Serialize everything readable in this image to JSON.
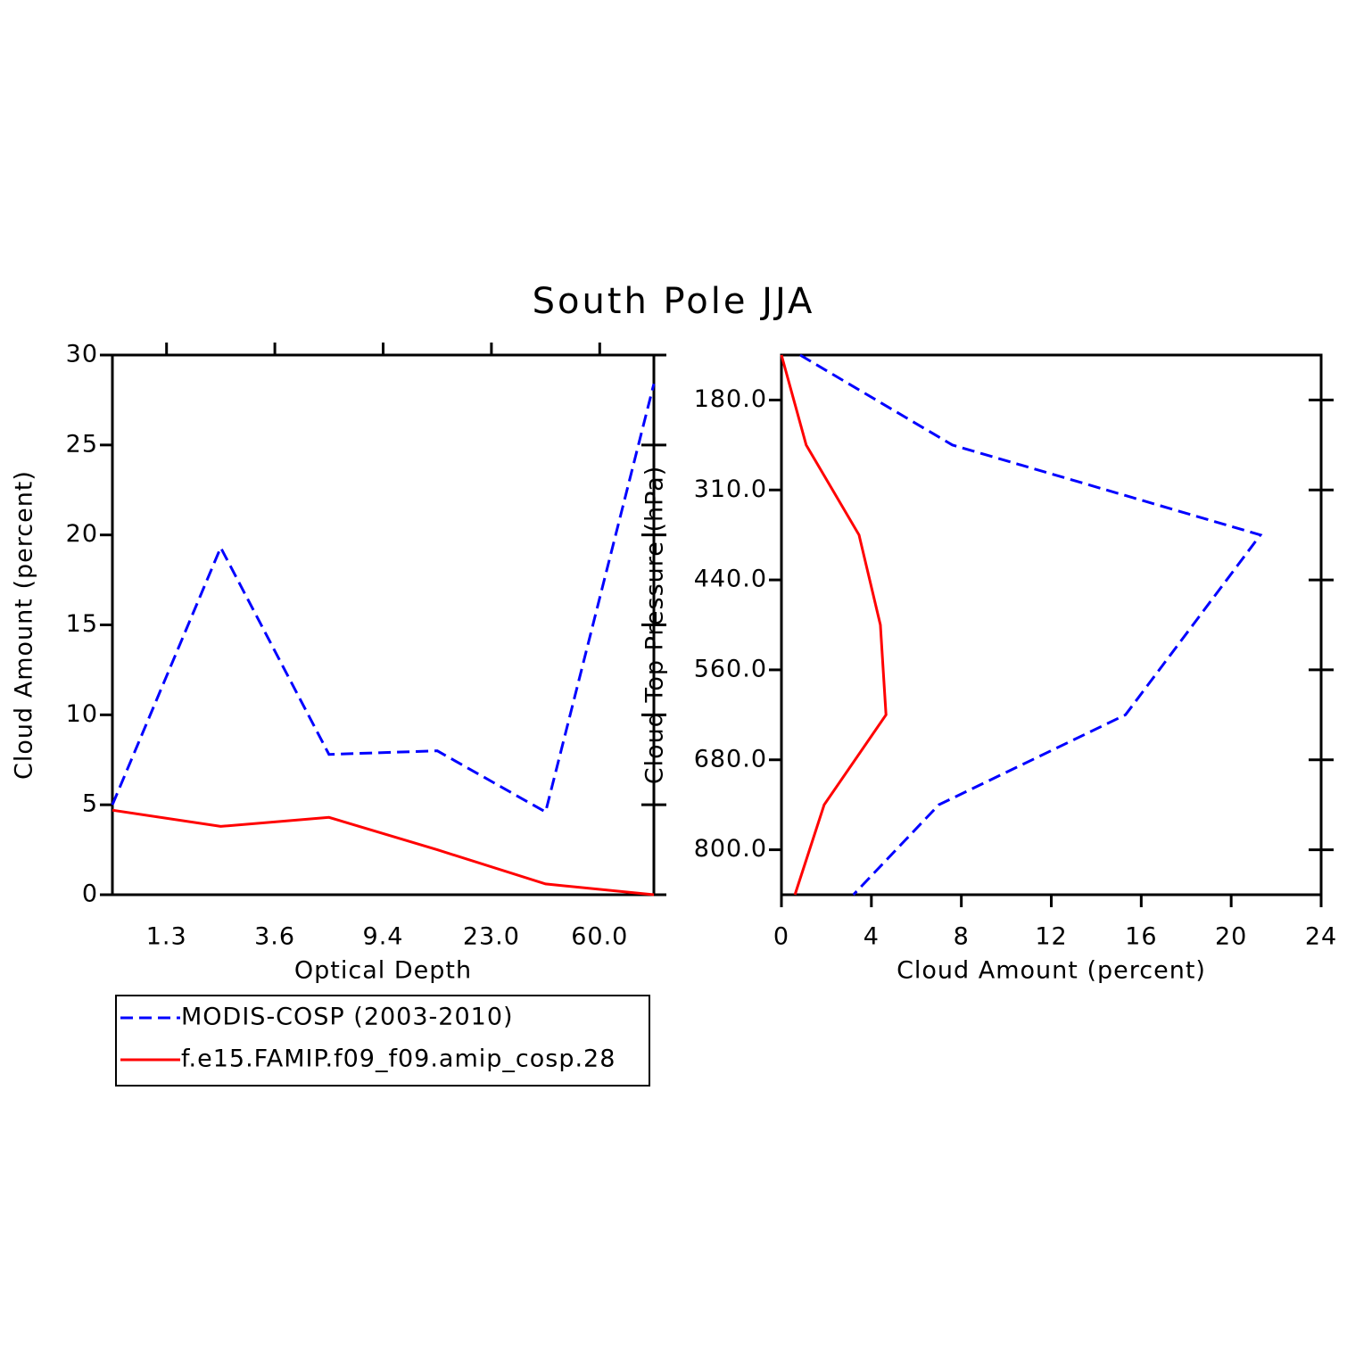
{
  "title": "South Pole JJA",
  "chart_data": [
    {
      "type": "line",
      "orientation": "vertical",
      "x_label": "Optical Depth",
      "y_label": "Cloud Amount (percent)",
      "x": [
        0,
        1,
        2,
        3,
        4,
        5
      ],
      "xlim": [
        0,
        5
      ],
      "xticks": [
        {
          "value": 0.5,
          "label": "1.3"
        },
        {
          "value": 1.5,
          "label": "3.6"
        },
        {
          "value": 2.5,
          "label": "9.4"
        },
        {
          "value": 3.5,
          "label": "23.0"
        },
        {
          "value": 4.5,
          "label": "60.0"
        }
      ],
      "ylim": [
        0,
        30
      ],
      "yticks": [
        0,
        5,
        10,
        15,
        20,
        25,
        30
      ],
      "legend": "below",
      "series": [
        {
          "name": "MODIS-COSP (2003-2010)",
          "color": "#0000ff",
          "dashed": true,
          "values": [
            5.0,
            19.3,
            7.8,
            8.0,
            4.6,
            28.4
          ]
        },
        {
          "name": "f.e15.FAMIP.f09_f09.amip_cosp.28",
          "color": "#ff0000",
          "dashed": false,
          "values": [
            4.7,
            3.8,
            4.3,
            2.5,
            0.6,
            0.0
          ]
        }
      ]
    },
    {
      "type": "line",
      "orientation": "horizontal",
      "x_label": "Cloud Amount (percent)",
      "y_label": "Cloud Top Pressure (hPa)",
      "y": [
        0,
        1,
        2,
        3,
        4,
        5,
        6
      ],
      "xlim": [
        0,
        24
      ],
      "xticks": [
        0,
        4,
        8,
        12,
        16,
        20,
        24
      ],
      "ylim": [
        6,
        0
      ],
      "yticks": [
        {
          "value": 0.5,
          "label": "180.0"
        },
        {
          "value": 1.5,
          "label": "310.0"
        },
        {
          "value": 2.5,
          "label": "440.0"
        },
        {
          "value": 3.5,
          "label": "560.0"
        },
        {
          "value": 4.5,
          "label": "680.0"
        },
        {
          "value": 5.5,
          "label": "800.0"
        }
      ],
      "series": [
        {
          "color": "#0000ff",
          "dashed": true,
          "values": [
            0.83,
            7.6,
            21.3,
            18.3,
            15.3,
            7.0,
            3.2
          ]
        },
        {
          "color": "#ff0000",
          "dashed": false,
          "values": [
            0.0,
            1.1,
            3.45,
            4.4,
            4.65,
            1.9,
            0.6
          ]
        }
      ]
    }
  ]
}
